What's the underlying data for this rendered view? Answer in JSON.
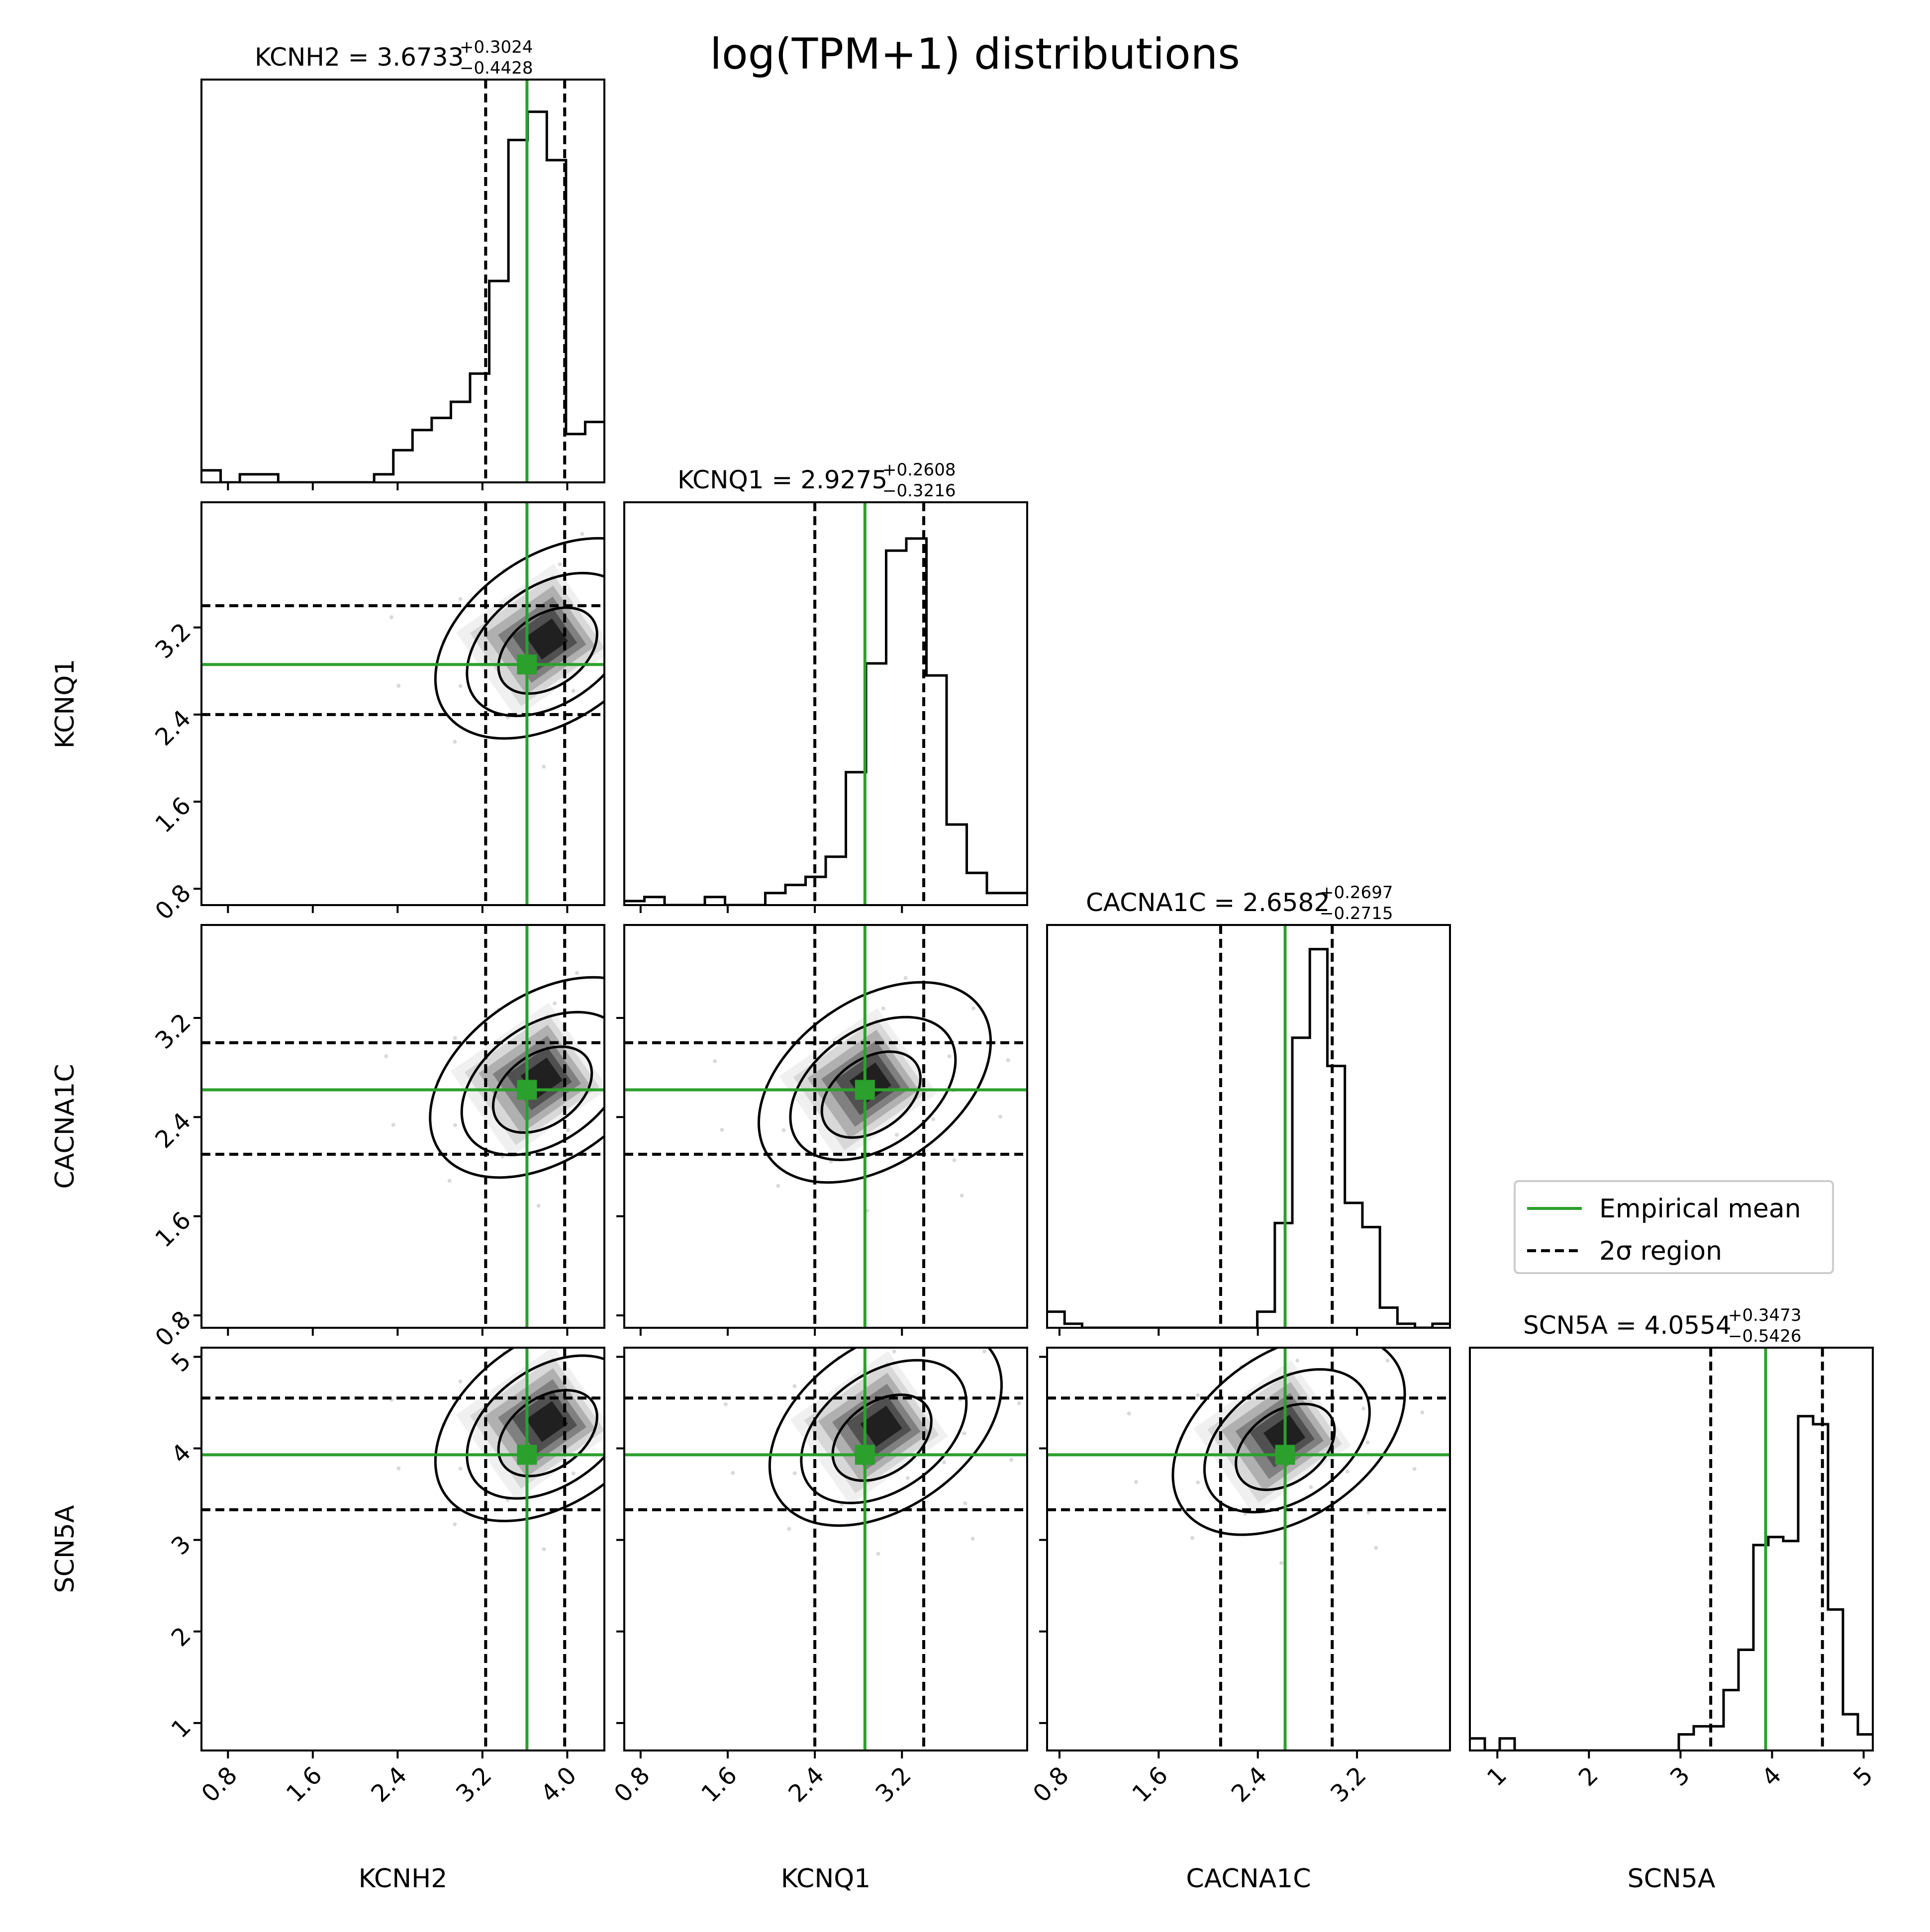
{
  "chart_data": {
    "type": "corner",
    "title": "log(TPM+1) distributions",
    "variables": [
      {
        "name": "KCNH2",
        "mean": 3.6733,
        "plus": "+0.3024",
        "minus": "−0.4428",
        "median_text": "3.6733",
        "lower": 3.2305,
        "upper": 3.9757,
        "range": [
          0.55,
          4.35
        ],
        "ticks": [
          0.8,
          1.6,
          2.4,
          3.2,
          4.0
        ],
        "tick_labels": [
          "0.8",
          "1.6",
          "2.4",
          "3.2",
          "4.0"
        ],
        "hist": [
          0.03,
          0.0,
          0.02,
          0.02,
          0.0,
          0.0,
          0.0,
          0.0,
          0.0,
          0.02,
          0.08,
          0.13,
          0.16,
          0.2,
          0.27,
          0.5,
          0.85,
          0.92,
          0.8,
          0.12,
          0.15
        ]
      },
      {
        "name": "KCNQ1",
        "mean": 2.9275,
        "plus": "+0.2608",
        "minus": "−0.3216",
        "median_text": "2.9275",
        "lower": 2.4,
        "upper": 3.4,
        "range": [
          0.65,
          4.35
        ],
        "ticks": [
          0.8,
          1.6,
          2.4,
          3.2
        ],
        "tick_labels": [
          "0.8",
          "1.6",
          "2.4",
          "3.2"
        ],
        "hist": [
          0.01,
          0.02,
          0.0,
          0.0,
          0.02,
          0.0,
          0.0,
          0.03,
          0.05,
          0.07,
          0.12,
          0.33,
          0.6,
          0.88,
          0.91,
          0.57,
          0.2,
          0.08,
          0.03,
          0.03
        ]
      },
      {
        "name": "CACNA1C",
        "mean": 2.6582,
        "plus": "+0.2697",
        "minus": "−0.2715",
        "median_text": "2.6582",
        "lower": 2.1,
        "upper": 3.0,
        "range": [
          0.7,
          3.95
        ],
        "ticks": [
          0.8,
          1.6,
          2.4,
          3.2
        ],
        "tick_labels": [
          "0.8",
          "1.6",
          "2.4",
          "3.2"
        ],
        "hist": [
          0.04,
          0.01,
          0.0,
          0.0,
          0.0,
          0.0,
          0.0,
          0.0,
          0.0,
          0.0,
          0.0,
          0.0,
          0.04,
          0.26,
          0.72,
          0.94,
          0.65,
          0.31,
          0.25,
          0.05,
          0.01,
          0.0,
          0.01
        ]
      },
      {
        "name": "SCN5A",
        "mean": 4.0554,
        "plus": "+0.3473",
        "minus": "−0.5426",
        "median_text": "4.0554",
        "lower": 3.33,
        "upper": 4.55,
        "range": [
          0.7,
          5.1
        ],
        "ticks": [
          1,
          2,
          3,
          4,
          5
        ],
        "tick_labels": [
          "1",
          "2",
          "3",
          "4",
          "5"
        ],
        "hist": [
          0.03,
          0.0,
          0.03,
          0.0,
          0.0,
          0.0,
          0.0,
          0.0,
          0.0,
          0.0,
          0.0,
          0.0,
          0.0,
          0.0,
          0.04,
          0.06,
          0.06,
          0.15,
          0.25,
          0.51,
          0.53,
          0.52,
          0.83,
          0.81,
          0.35,
          0.09,
          0.04
        ]
      }
    ],
    "empirical_means": [
      3.62,
      2.86,
      2.62,
      3.93
    ],
    "pair_peaks": {
      "1-0": [
        3.85,
        3.1
      ],
      "2-0": [
        3.8,
        2.72
      ],
      "2-1": [
        2.95,
        2.68
      ],
      "3-0": [
        3.85,
        4.3
      ],
      "3-1": [
        3.05,
        4.25
      ],
      "3-2": [
        2.65,
        4.15
      ]
    },
    "legend": {
      "placement": "right",
      "entries": [
        {
          "label": "Empirical mean",
          "color": "#2ca02c",
          "style": "solid"
        },
        {
          "label": "2σ region",
          "color": "#000000",
          "style": "dashed"
        }
      ]
    },
    "colors": {
      "mean_line": "#2ca02c",
      "contour": "#000000",
      "region": "#000000"
    }
  }
}
